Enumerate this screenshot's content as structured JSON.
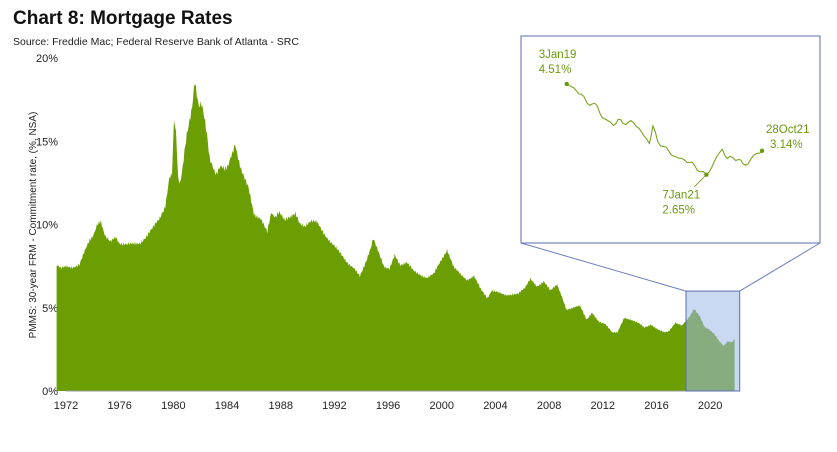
{
  "header": {
    "title": "Chart 8: Mortgage Rates",
    "subtitle": "Source: Freddie Mac; Federal Reserve Bank of Atlanta - SRC"
  },
  "colors": {
    "area": "#6b9e03",
    "highlight_fill": "#9fb8e8",
    "highlight_stroke": "#5a6fb0",
    "inset_line": "#7aa51f",
    "annotation": "#6a9a0e"
  },
  "chart_data": [
    {
      "type": "area",
      "title": "Chart 8: Mortgage Rates",
      "ylabel": "PMMS: 30-year FRM - Commitment rate, (%, NSA)",
      "xlabel": "",
      "xlim": [
        1972,
        2022
      ],
      "ylim": [
        0,
        20
      ],
      "x_ticks": [
        "1972",
        "1976",
        "1980",
        "1984",
        "1988",
        "1992",
        "1996",
        "2000",
        "2004",
        "2008",
        "2012",
        "2016",
        "2020"
      ],
      "y_ticks": [
        "0%",
        "5%",
        "10%",
        "15%",
        "20%"
      ],
      "grid": false,
      "highlight_range": {
        "x": [
          2018.2,
          2022.2
        ],
        "y": [
          0,
          6
        ]
      },
      "x": [
        1971.3,
        1971.6,
        1972.0,
        1972.5,
        1973.0,
        1973.4,
        1973.7,
        1974.0,
        1974.3,
        1974.6,
        1974.9,
        1975.3,
        1975.7,
        1976.0,
        1976.5,
        1977.0,
        1977.5,
        1978.0,
        1978.5,
        1979.0,
        1979.4,
        1979.7,
        1979.9,
        1980.05,
        1980.2,
        1980.35,
        1980.5,
        1980.7,
        1980.9,
        1981.0,
        1981.2,
        1981.4,
        1981.6,
        1981.75,
        1981.9,
        1982.1,
        1982.3,
        1982.5,
        1982.7,
        1982.9,
        1983.2,
        1983.5,
        1983.8,
        1984.1,
        1984.4,
        1984.6,
        1984.9,
        1985.2,
        1985.6,
        1986.0,
        1986.3,
        1986.6,
        1987.0,
        1987.3,
        1987.6,
        1987.9,
        1988.3,
        1988.7,
        1989.1,
        1989.4,
        1989.8,
        1990.3,
        1990.7,
        1991.2,
        1991.7,
        1992.2,
        1992.6,
        1993.0,
        1993.5,
        1993.9,
        1994.3,
        1994.7,
        1994.9,
        1995.3,
        1995.7,
        1996.1,
        1996.5,
        1996.9,
        1997.4,
        1997.9,
        1998.4,
        1998.9,
        1999.4,
        1999.9,
        2000.4,
        2000.9,
        2001.4,
        2001.9,
        2002.4,
        2002.9,
        2003.4,
        2003.7,
        2004.2,
        2004.7,
        2005.2,
        2005.7,
        2006.2,
        2006.6,
        2007.1,
        2007.6,
        2008.1,
        2008.6,
        2008.9,
        2009.3,
        2009.8,
        2010.3,
        2010.8,
        2011.2,
        2011.7,
        2012.2,
        2012.7,
        2013.1,
        2013.6,
        2014.1,
        2014.6,
        2015.1,
        2015.6,
        2016.1,
        2016.6,
        2016.9,
        2017.4,
        2017.9,
        2018.4,
        2018.8,
        2019.2,
        2019.6,
        2019.9,
        2020.3,
        2020.6,
        2020.9,
        2021.0,
        2021.3,
        2021.6,
        2021.82
      ],
      "values": [
        7.5,
        7.4,
        7.45,
        7.45,
        7.6,
        8.5,
        8.9,
        9.3,
        10.0,
        10.1,
        9.4,
        9.0,
        9.2,
        8.9,
        8.8,
        8.8,
        8.9,
        9.3,
        9.8,
        10.4,
        11.0,
        12.9,
        13.1,
        16.4,
        15.5,
        12.7,
        12.4,
        13.4,
        14.7,
        15.5,
        16.3,
        17.1,
        18.6,
        17.9,
        17.2,
        17.4,
        16.6,
        15.5,
        14.0,
        13.5,
        13.1,
        13.4,
        13.4,
        13.6,
        14.2,
        14.7,
        13.8,
        13.0,
        12.3,
        10.7,
        10.4,
        10.2,
        9.5,
        10.8,
        10.4,
        10.7,
        10.2,
        10.4,
        10.7,
        10.0,
        9.8,
        10.2,
        10.1,
        9.5,
        9.0,
        8.5,
        8.1,
        7.7,
        7.3,
        6.9,
        7.7,
        8.6,
        9.2,
        8.3,
        7.4,
        7.3,
        8.2,
        7.6,
        7.7,
        7.2,
        7.0,
        6.8,
        7.0,
        7.8,
        8.5,
        7.4,
        7.0,
        6.7,
        6.9,
        6.1,
        5.6,
        6.0,
        5.9,
        5.8,
        5.8,
        5.8,
        6.2,
        6.7,
        6.3,
        6.6,
        6.0,
        6.4,
        5.8,
        4.9,
        5.0,
        5.1,
        4.3,
        4.7,
        4.2,
        4.0,
        3.5,
        3.5,
        4.4,
        4.3,
        4.1,
        3.8,
        4.0,
        3.7,
        3.5,
        3.6,
        4.1,
        3.9,
        4.4,
        4.9,
        4.5,
        3.8,
        3.7,
        3.4,
        3.1,
        2.8,
        2.7,
        3.0,
        2.9,
        3.1
      ]
    },
    {
      "type": "line",
      "title": "",
      "xlim": [
        2019.0,
        2021.82
      ],
      "ylim": [
        2.5,
        5.0
      ],
      "x": [
        2019.01,
        2019.08,
        2019.15,
        2019.22,
        2019.3,
        2019.38,
        2019.45,
        2019.52,
        2019.6,
        2019.68,
        2019.75,
        2019.82,
        2019.9,
        2019.97,
        2020.05,
        2020.12,
        2020.2,
        2020.25,
        2020.32,
        2020.4,
        2020.48,
        2020.55,
        2020.62,
        2020.7,
        2020.78,
        2020.85,
        2020.93,
        2021.02,
        2021.1,
        2021.17,
        2021.25,
        2021.32,
        2021.4,
        2021.48,
        2021.55,
        2021.62,
        2021.7,
        2021.76,
        2021.82
      ],
      "values": [
        4.51,
        4.45,
        4.37,
        4.3,
        4.12,
        4.1,
        4.06,
        3.82,
        3.76,
        3.66,
        3.78,
        3.7,
        3.73,
        3.72,
        3.6,
        3.45,
        3.29,
        3.65,
        3.33,
        3.23,
        3.13,
        3.03,
        2.99,
        2.96,
        2.9,
        2.84,
        2.71,
        2.65,
        2.81,
        3.02,
        3.17,
        2.98,
        3.0,
        2.96,
        2.87,
        2.87,
        3.05,
        3.09,
        3.14
      ],
      "annotations": [
        {
          "date": "3Jan19",
          "value": "4.51%",
          "x": 2019.01,
          "y": 4.51
        },
        {
          "date": "7Jan21",
          "value": "2.65%",
          "x": 2021.02,
          "y": 2.65
        },
        {
          "date": "28Oct21",
          "value": "3.14%",
          "x": 2021.82,
          "y": 3.14
        }
      ]
    }
  ]
}
